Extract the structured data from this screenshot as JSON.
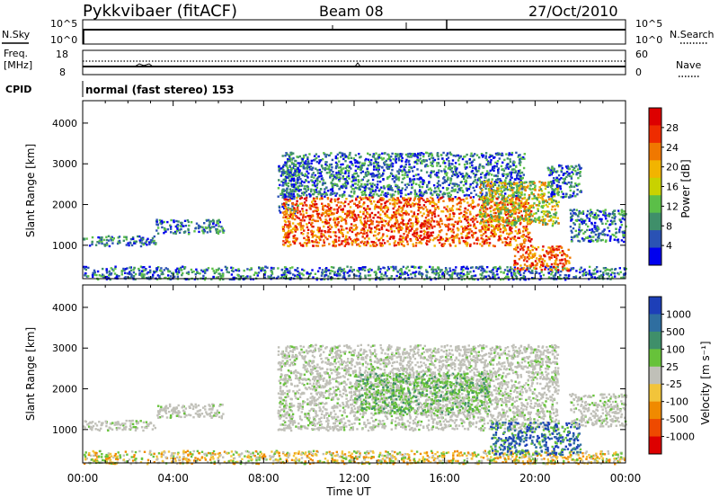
{
  "header": {
    "title": "Pykkvibaer (fitACF)",
    "beam": "Beam 08",
    "date": "27/Oct/2010"
  },
  "top_panels": {
    "nsky_label": "N.Sky",
    "nsearch_label": "N.Search",
    "nsky_ticks": [
      "10^5",
      "10^0"
    ],
    "nsearch_ticks": [
      "10^5",
      "10^0"
    ],
    "freq_label_line1": "Freq.",
    "freq_label_line2": "[MHz]",
    "freq_ticks": [
      "18",
      "8"
    ],
    "nave_label": "Nave",
    "nave_ticks": [
      "60",
      "0"
    ],
    "cpid_label": "CPID",
    "cpid_text": "normal (fast stereo) 153"
  },
  "colors": {
    "power_scale": [
      "#0000ee",
      "#2a52b4",
      "#3f8f6a",
      "#5bbf48",
      "#c8d200",
      "#f2b400",
      "#f07800",
      "#ee2c00",
      "#dd0000"
    ],
    "velocity_scale": [
      "#1d3fb8",
      "#2f6ea0",
      "#3f8f6a",
      "#67c23a",
      "#c0c0b8",
      "#f2c43a",
      "#f08a00",
      "#ee4a00",
      "#dd0000"
    ],
    "grey_scatter": "#c0c0b8"
  },
  "chart_data": [
    {
      "type": "heatmap",
      "name": "power",
      "xlabel": "Time UT",
      "ylabel": "Slant Range [km]",
      "x_ticks": [
        "00:00",
        "04:00",
        "08:00",
        "12:00",
        "16:00",
        "20:00",
        "00:00"
      ],
      "x_range_hours": [
        0,
        24
      ],
      "y_ticks": [
        "4000",
        "3000",
        "2000",
        "1000"
      ],
      "y_tick_values": [
        4000,
        3000,
        2000,
        1000
      ],
      "ylim": [
        180,
        4550
      ],
      "colorbar_label": "Power [dB]",
      "colorbar_ticks": [
        "28",
        "24",
        "20",
        "16",
        "12",
        "8",
        "4"
      ],
      "colorbar_range": [
        0,
        32
      ],
      "scatter_regions": [
        {
          "t0": 0.0,
          "t1": 3.2,
          "r0": 1000,
          "r1": 1250,
          "level": "low"
        },
        {
          "t0": 3.2,
          "t1": 6.2,
          "r0": 1300,
          "r1": 1650,
          "level": "low"
        },
        {
          "t0": 0.0,
          "t1": 24.0,
          "r0": 180,
          "r1": 500,
          "level": "low"
        },
        {
          "t0": 8.6,
          "t1": 9.5,
          "r0": 1800,
          "r1": 3000,
          "level": "low"
        },
        {
          "t0": 8.8,
          "t1": 19.5,
          "r0": 2200,
          "r1": 3300,
          "level": "low"
        },
        {
          "t0": 8.8,
          "t1": 19.8,
          "r0": 1000,
          "r1": 2200,
          "level": "high"
        },
        {
          "t0": 17.5,
          "t1": 21.0,
          "r0": 1500,
          "r1": 2600,
          "level": "mid"
        },
        {
          "t0": 19.0,
          "t1": 21.5,
          "r0": 400,
          "r1": 1000,
          "level": "high"
        },
        {
          "t0": 20.5,
          "t1": 22.0,
          "r0": 2200,
          "r1": 3000,
          "level": "low"
        },
        {
          "t0": 21.5,
          "t1": 24.0,
          "r0": 1100,
          "r1": 1900,
          "level": "low"
        }
      ]
    },
    {
      "type": "heatmap",
      "name": "velocity",
      "xlabel": "Time UT",
      "ylabel": "Slant Range [km]",
      "x_ticks": [
        "00:00",
        "04:00",
        "08:00",
        "12:00",
        "16:00",
        "20:00",
        "00:00"
      ],
      "x_range_hours": [
        0,
        24
      ],
      "y_ticks": [
        "4000",
        "3000",
        "2000",
        "1000"
      ],
      "y_tick_values": [
        4000,
        3000,
        2000,
        1000
      ],
      "ylim": [
        180,
        4550
      ],
      "colorbar_label": "Velocity [m s⁻¹]",
      "colorbar_ticks": [
        "1000",
        "500",
        "100",
        "25",
        "-25",
        "-100",
        "-500",
        "-1000"
      ],
      "scatter_regions": [
        {
          "t0": 0.0,
          "t1": 3.2,
          "r0": 1000,
          "r1": 1250,
          "level": "grey"
        },
        {
          "t0": 3.2,
          "t1": 6.2,
          "r0": 1300,
          "r1": 1650,
          "level": "grey"
        },
        {
          "t0": 0.0,
          "t1": 24.0,
          "r0": 180,
          "r1": 500,
          "level": "mixed"
        },
        {
          "t0": 8.6,
          "t1": 21.0,
          "r0": 1000,
          "r1": 3100,
          "level": "grey"
        },
        {
          "t0": 12.0,
          "t1": 18.0,
          "r0": 1400,
          "r1": 2400,
          "level": "green"
        },
        {
          "t0": 18.0,
          "t1": 22.0,
          "r0": 400,
          "r1": 1200,
          "level": "blue"
        },
        {
          "t0": 21.5,
          "t1": 24.0,
          "r0": 1100,
          "r1": 1900,
          "level": "grey"
        }
      ]
    }
  ]
}
